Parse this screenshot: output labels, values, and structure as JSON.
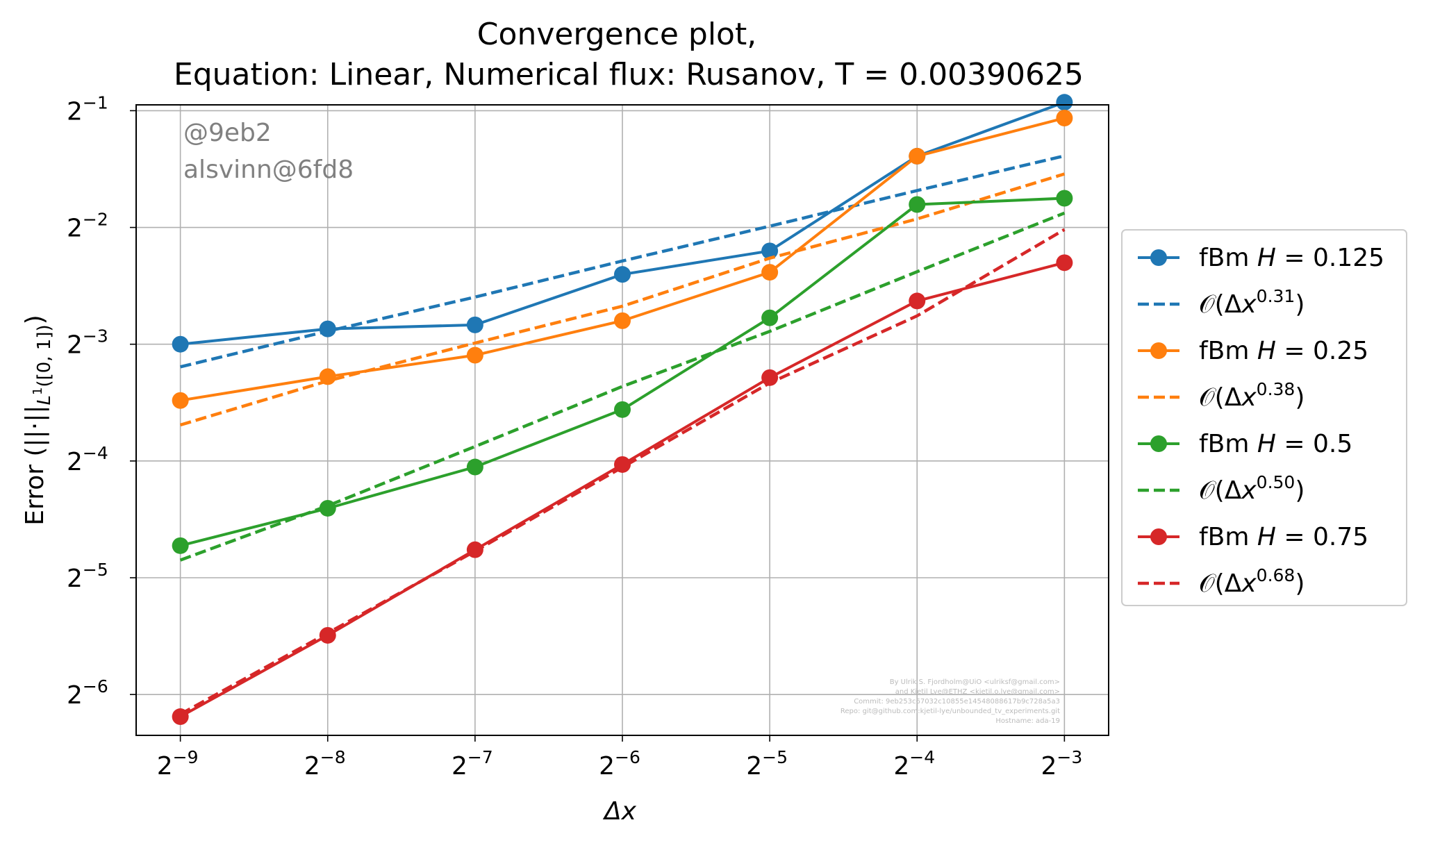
{
  "chart_data": {
    "type": "line",
    "title_lines": [
      "Convergence plot,",
      "Equation: Linear, Numerical flux: Rusanov, T = 0.00390625"
    ],
    "xlabel": "Δx",
    "ylabel": "Error (||·||L¹([0,1]))",
    "xscale": "log2",
    "yscale": "log2",
    "x": [
      0.001953125,
      0.00390625,
      0.0078125,
      0.015625,
      0.03125,
      0.0625,
      0.125
    ],
    "xlim_log2": [
      -9.3,
      -2.7
    ],
    "ylim_log2": [
      -6.35,
      -0.95
    ],
    "x_ticks": [
      "2^-9",
      "2^-8",
      "2^-7",
      "2^-6",
      "2^-5",
      "2^-4",
      "2^-3"
    ],
    "y_ticks": [
      "2^-6",
      "2^-5",
      "2^-4",
      "2^-3",
      "2^-2",
      "2^-1"
    ],
    "grid": true,
    "legend_placement": "outside-right",
    "series": [
      {
        "name": "fBm H = 0.125",
        "color": "#1f77b4",
        "style": "solid-marker",
        "values": [
          0.125,
          0.1369,
          0.1402,
          0.1892,
          0.2175,
          0.3817,
          0.5256
        ]
      },
      {
        "name": "O(Δx^0.31)",
        "color": "#1f77b4",
        "style": "dashed",
        "exponent": "0.31",
        "values": [
          0.1093,
          0.1351,
          0.1654,
          0.2049,
          0.2519,
          0.3112,
          0.3823
        ]
      },
      {
        "name": "fBm H = 0.25",
        "color": "#ff7f0e",
        "style": "solid-marker",
        "values": [
          0.0895,
          0.1031,
          0.1171,
          0.1437,
          0.1916,
          0.3817,
          0.4786
        ]
      },
      {
        "name": "O(Δx^0.38)",
        "color": "#ff7f0e",
        "style": "dashed",
        "exponent": "0.38",
        "values": [
          0.0774,
          0.1005,
          0.1259,
          0.1567,
          0.2083,
          0.263,
          0.3435
        ]
      },
      {
        "name": "fBm H = 0.5",
        "color": "#2ca02c",
        "style": "solid-marker",
        "values": [
          0.0378,
          0.0472,
          0.0603,
          0.0848,
          0.1462,
          0.2865,
          0.2973
        ]
      },
      {
        "name": "O(Δx^0.50)",
        "color": "#2ca02c",
        "style": "dashed",
        "exponent": "0.50",
        "values": [
          0.0347,
          0.0479,
          0.0681,
          0.0973,
          0.1349,
          0.1922,
          0.2723
        ]
      },
      {
        "name": "fBm H = 0.75",
        "color": "#d62728",
        "style": "solid-marker",
        "values": [
          0.0137,
          0.0222,
          0.0369,
          0.0612,
          0.1025,
          0.1616,
          0.2028
        ]
      },
      {
        "name": "O(Δx^0.68)",
        "color": "#d62728",
        "style": "dashed",
        "exponent": "0.68",
        "values": [
          0.0139,
          0.0225,
          0.0366,
          0.0602,
          0.0993,
          0.1479,
          0.2469
        ]
      }
    ]
  },
  "legend": [
    {
      "kind": "fbm",
      "prefix": "fBm ",
      "var": "H",
      "eq": " = ",
      "value": "0.125",
      "color": "#1f77b4"
    },
    {
      "kind": "order",
      "prefix": "𝒪(Δ",
      "var": "x",
      "exp": "0.31",
      "suffix": ")",
      "color": "#1f77b4"
    },
    {
      "kind": "fbm",
      "prefix": "fBm ",
      "var": "H",
      "eq": " = ",
      "value": "0.25",
      "color": "#ff7f0e"
    },
    {
      "kind": "order",
      "prefix": "𝒪(Δ",
      "var": "x",
      "exp": "0.38",
      "suffix": ")",
      "color": "#ff7f0e"
    },
    {
      "kind": "fbm",
      "prefix": "fBm ",
      "var": "H",
      "eq": " = ",
      "value": "0.5",
      "color": "#2ca02c"
    },
    {
      "kind": "order",
      "prefix": "𝒪(Δ",
      "var": "x",
      "exp": "0.50",
      "suffix": ")",
      "color": "#2ca02c"
    },
    {
      "kind": "fbm",
      "prefix": "fBm ",
      "var": "H",
      "eq": " = ",
      "value": "0.75",
      "color": "#d62728"
    },
    {
      "kind": "order",
      "prefix": "𝒪(Δ",
      "var": "x",
      "exp": "0.68",
      "suffix": ")",
      "color": "#d62728"
    }
  ],
  "stamps": [
    "@9eb2",
    "alsvinn@6fd8"
  ],
  "credits": [
    "By Ulrik S. Fjordholm@UiO <ulriksf@gmail.com>",
    "and Kjetil Lye@ETHZ <kjetil.o.lye@gmail.com>",
    "Commit: 9eb253c67032c10855e14548088617b9c728a5a3",
    "Repo: git@github.com:kjetil-lye/unbounded_tv_experiments.git",
    "Hostname: ada-19"
  ]
}
